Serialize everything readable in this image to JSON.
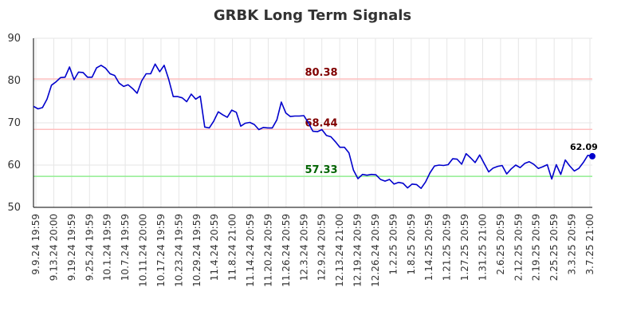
{
  "chart_data": {
    "type": "line",
    "title": "GRBK Long Term Signals",
    "xlabel": "",
    "ylabel": "",
    "ylim": [
      50,
      90
    ],
    "yticks": [
      50,
      60,
      70,
      80,
      90
    ],
    "grid": true,
    "xtick_labels": [
      "9.9.24 19:59",
      "9.13.24 20:00",
      "9.19.24 19:59",
      "9.25.24 19:59",
      "10.1.24 19:59",
      "10.7.24 19:59",
      "10.11.24 20:00",
      "10.17.24 19:59",
      "10.23.24 19:59",
      "10.29.24 19:59",
      "11.4.24 20:59",
      "11.8.24 21:00",
      "11.14.24 20:59",
      "11.20.24 20:59",
      "11.26.24 20:59",
      "12.3.24 20:59",
      "12.9.24 20:59",
      "12.13.24 21:00",
      "12.19.24 20:59",
      "12.26.24 20:59",
      "1.2.25 20:59",
      "1.8.25 20:59",
      "1.14.25 20:59",
      "1.21.25 20:59",
      "1.27.25 20:59",
      "1.31.25 21:00",
      "2.6.25 20:59",
      "2.12.25 20:59",
      "2.19.25 20:59",
      "2.25.25 20:59",
      "3.3.25 20:59",
      "3.7.25 21:00"
    ],
    "series": [
      {
        "color": "#0000cc",
        "values": [
          73.9,
          73.3,
          73.6,
          75.6,
          78.9,
          79.7,
          80.7,
          80.8,
          83.2,
          80.2,
          82.0,
          81.9,
          80.8,
          80.8,
          83.0,
          83.6,
          82.9,
          81.6,
          81.2,
          79.4,
          78.6,
          79.0,
          78.1,
          77.0,
          79.9,
          81.6,
          81.6,
          83.9,
          82.1,
          83.6,
          80.3,
          76.2,
          76.2,
          75.9,
          75.0,
          76.8,
          75.6,
          76.3,
          69.0,
          68.8,
          70.4,
          72.6,
          71.9,
          71.3,
          73.0,
          72.5,
          69.2,
          69.9,
          70.1,
          69.6,
          68.4,
          68.9,
          68.8,
          68.8,
          70.7,
          74.9,
          72.3,
          71.5,
          71.6,
          71.6,
          71.7,
          70.0,
          68.0,
          67.9,
          68.4,
          67.0,
          66.7,
          65.5,
          64.2,
          64.2,
          62.9,
          58.8,
          56.8,
          57.8,
          57.6,
          57.8,
          57.7,
          56.6,
          56.2,
          56.6,
          55.5,
          55.9,
          55.7,
          54.6,
          55.5,
          55.4,
          54.5,
          56.0,
          58.2,
          59.8,
          60.0,
          59.9,
          60.1,
          61.5,
          61.4,
          60.2,
          62.7,
          61.7,
          60.6,
          62.4,
          60.4,
          58.4,
          59.3,
          59.7,
          59.9,
          57.9,
          59.1,
          60.0,
          59.4,
          60.4,
          60.8,
          60.2,
          59.2,
          59.6,
          60.1,
          56.7,
          60.1,
          57.8,
          61.2,
          59.8,
          58.6,
          59.2,
          60.6,
          62.3,
          62.09
        ]
      }
    ],
    "hlines": [
      {
        "value": 80.38,
        "label": "80.38",
        "line_color": "#ffc0c0",
        "text_color": "#800000"
      },
      {
        "value": 68.44,
        "label": "68.44",
        "line_color": "#ffc0c0",
        "text_color": "#800000"
      },
      {
        "value": 57.33,
        "label": "57.33",
        "line_color": "#90ee90",
        "text_color": "#006400"
      }
    ],
    "last_point_label": "62.09",
    "grid_color": "#e6e6e6",
    "axis_color": "#000000"
  }
}
